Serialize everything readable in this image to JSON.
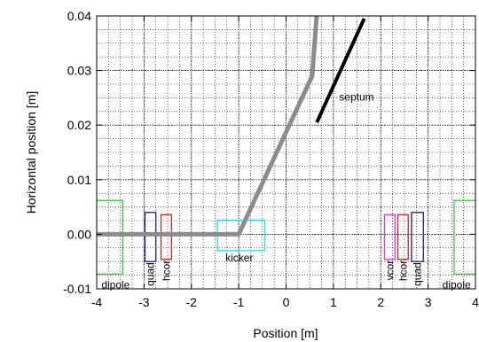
{
  "chart_data": {
    "type": "line",
    "xlabel": "Position [m]",
    "ylabel": "Horizontal position [m]",
    "xlim": [
      -4,
      4
    ],
    "ylim": [
      -0.01,
      0.04
    ],
    "x_ticks": [
      "-4",
      "-3",
      "-2",
      "-1",
      "0",
      "1",
      "2",
      "3",
      "4"
    ],
    "y_ticks": [
      "-0.01",
      "0.00",
      "0.01",
      "0.02",
      "0.03",
      "0.04"
    ],
    "minor_grid_step_x": 0.25,
    "minor_grid_step_y": 0.0025,
    "grid": true,
    "colors": {
      "trajectory": "#8c8c8c",
      "septum": "#000000",
      "dipole": "#33cc33",
      "quad": "#1a1aa6",
      "hcor": "#cc2222",
      "vcor": "#dd33dd",
      "kicker": "#33d6e6"
    },
    "series": [
      {
        "values": [
          [
            -4.0,
            0.0
          ],
          [
            -1.0,
            0.0
          ],
          [
            0.55,
            0.029
          ],
          [
            0.65,
            0.0404
          ]
        ]
      }
    ],
    "septum_line": {
      "label": "septum",
      "x": [
        0.65,
        1.65
      ],
      "y": [
        0.0205,
        0.0395
      ]
    },
    "elements": [
      {
        "label": "dipole",
        "color": "dipole",
        "x": [
          -4.05,
          -3.45
        ],
        "y": [
          -0.0073,
          0.0062
        ]
      },
      {
        "label": "quad",
        "color": "quad",
        "x": [
          -2.98,
          -2.75
        ],
        "y": [
          -0.005,
          0.004
        ]
      },
      {
        "label": "hcor",
        "color": "hcor",
        "x": [
          -2.64,
          -2.42
        ],
        "y": [
          -0.0046,
          0.0036
        ]
      },
      {
        "label": "kicker",
        "color": "kicker",
        "x": [
          -1.45,
          -0.45
        ],
        "y": [
          -0.003,
          0.0026
        ]
      },
      {
        "label": "vcor",
        "color": "vcor",
        "x": [
          2.08,
          2.3
        ],
        "y": [
          -0.0046,
          0.0036
        ]
      },
      {
        "label": "hcor",
        "color": "hcor",
        "x": [
          2.36,
          2.58
        ],
        "y": [
          -0.0046,
          0.0036
        ]
      },
      {
        "label": "quad",
        "color": "quad",
        "x": [
          2.65,
          2.9
        ],
        "y": [
          -0.005,
          0.004
        ]
      },
      {
        "label": "dipole",
        "color": "dipole",
        "x": [
          3.55,
          4.05
        ],
        "y": [
          -0.0073,
          0.0062
        ]
      }
    ]
  }
}
